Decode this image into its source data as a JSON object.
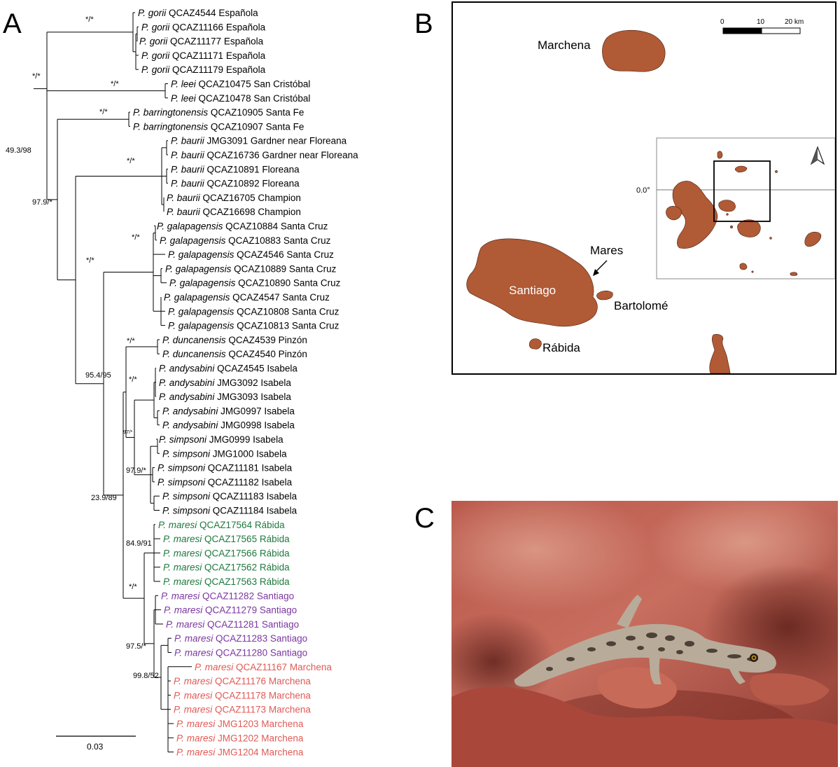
{
  "panels": {
    "a": "A",
    "b": "B",
    "c": "C"
  },
  "colors": {
    "island_fill": "#b05a36",
    "rabida_green": "#1e7a3e",
    "santiago_purple": "#7b36a0",
    "marchena_red": "#e05a55",
    "branch": "#000000"
  },
  "tree": {
    "scale_bar_label": "0.03",
    "tips": [
      {
        "genus": "P.",
        "species": "gorii",
        "voucher": "QCAZ4544",
        "locality": "Española"
      },
      {
        "genus": "P.",
        "species": "gorii",
        "voucher": "QCAZ11166",
        "locality": "Española"
      },
      {
        "genus": "P.",
        "species": "gorii",
        "voucher": "QCAZ11177",
        "locality": "Española"
      },
      {
        "genus": "P.",
        "species": "gorii",
        "voucher": "QCAZ11171",
        "locality": "Española"
      },
      {
        "genus": "P.",
        "species": "gorii",
        "voucher": "QCAZ11179",
        "locality": "Española"
      },
      {
        "genus": "P.",
        "species": "leei",
        "voucher": "QCAZ10475",
        "locality": "San Cristóbal"
      },
      {
        "genus": "P.",
        "species": "leei",
        "voucher": "QCAZ10478",
        "locality": "San Cristóbal"
      },
      {
        "genus": "P.",
        "species": "barringtonensis",
        "voucher": "QCAZ10905",
        "locality": "Santa Fe"
      },
      {
        "genus": "P.",
        "species": "barringtonensis",
        "voucher": "QCAZ10907",
        "locality": "Santa Fe"
      },
      {
        "genus": "P.",
        "species": "baurii",
        "voucher": "JMG3091",
        "locality": "Gardner near Floreana"
      },
      {
        "genus": "P.",
        "species": "baurii",
        "voucher": "QCAZ16736",
        "locality": "Gardner near Floreana"
      },
      {
        "genus": "P.",
        "species": "baurii",
        "voucher": "QCAZ10891",
        "locality": "Floreana"
      },
      {
        "genus": "P.",
        "species": "baurii",
        "voucher": "QCAZ10892",
        "locality": "Floreana"
      },
      {
        "genus": "P.",
        "species": "baurii",
        "voucher": "QCAZ16705",
        "locality": "Champion"
      },
      {
        "genus": "P.",
        "species": "baurii",
        "voucher": "QCAZ16698",
        "locality": "Champion"
      },
      {
        "genus": "P.",
        "species": "galapagensis",
        "voucher": "QCAZ10884",
        "locality": "Santa Cruz"
      },
      {
        "genus": "P.",
        "species": "galapagensis",
        "voucher": "QCAZ10883",
        "locality": "Santa Cruz"
      },
      {
        "genus": "P.",
        "species": "galapagensis",
        "voucher": "QCAZ4546",
        "locality": "Santa Cruz"
      },
      {
        "genus": "P.",
        "species": "galapagensis",
        "voucher": "QCAZ10889",
        "locality": "Santa Cruz"
      },
      {
        "genus": "P.",
        "species": "galapagensis",
        "voucher": "QCAZ10890",
        "locality": "Santa Cruz"
      },
      {
        "genus": "P.",
        "species": "galapagensis",
        "voucher": "QCAZ4547",
        "locality": "Santa Cruz"
      },
      {
        "genus": "P.",
        "species": "galapagensis",
        "voucher": "QCAZ10808",
        "locality": "Santa Cruz"
      },
      {
        "genus": "P.",
        "species": "galapagensis",
        "voucher": "QCAZ10813",
        "locality": "Santa Cruz"
      },
      {
        "genus": "P.",
        "species": "duncanensis",
        "voucher": "QCAZ4539",
        "locality": "Pinzón"
      },
      {
        "genus": "P.",
        "species": "duncanensis",
        "voucher": "QCAZ4540",
        "locality": "Pinzón"
      },
      {
        "genus": "P.",
        "species": "andysabini",
        "voucher": "QCAZ4545",
        "locality": "Isabela"
      },
      {
        "genus": "P.",
        "species": "andysabini",
        "voucher": "JMG3092",
        "locality": "Isabela"
      },
      {
        "genus": "P.",
        "species": "andysabini",
        "voucher": "JMG3093",
        "locality": "Isabela"
      },
      {
        "genus": "P.",
        "species": "andysabini",
        "voucher": "JMG0997",
        "locality": "Isabela"
      },
      {
        "genus": "P.",
        "species": "andysabini",
        "voucher": "JMG0998",
        "locality": "Isabela"
      },
      {
        "genus": "P.",
        "species": "simpsoni",
        "voucher": "JMG0999",
        "locality": "Isabela"
      },
      {
        "genus": "P.",
        "species": "simpsoni",
        "voucher": "JMG1000",
        "locality": "Isabela"
      },
      {
        "genus": "P.",
        "species": "simpsoni",
        "voucher": "QCAZ11181",
        "locality": "Isabela"
      },
      {
        "genus": "P.",
        "species": "simpsoni",
        "voucher": "QCAZ11182",
        "locality": "Isabela"
      },
      {
        "genus": "P.",
        "species": "simpsoni",
        "voucher": "QCAZ11183",
        "locality": "Isabela"
      },
      {
        "genus": "P.",
        "species": "simpsoni",
        "voucher": "QCAZ11184",
        "locality": "Isabela"
      },
      {
        "genus": "P.",
        "species": "maresi",
        "voucher": "QCAZ17564",
        "locality": "Rábida"
      },
      {
        "genus": "P.",
        "species": "maresi",
        "voucher": "QCAZ17565",
        "locality": "Rábida"
      },
      {
        "genus": "P.",
        "species": "maresi",
        "voucher": "QCAZ17566",
        "locality": "Rábida"
      },
      {
        "genus": "P.",
        "species": "maresi",
        "voucher": "QCAZ17562",
        "locality": "Rábida"
      },
      {
        "genus": "P.",
        "species": "maresi",
        "voucher": "QCAZ17563",
        "locality": "Rábida"
      },
      {
        "genus": "P.",
        "species": "maresi",
        "voucher": "QCAZ11282",
        "locality": "Santiago"
      },
      {
        "genus": "P.",
        "species": "maresi",
        "voucher": "QCAZ11279",
        "locality": "Santiago"
      },
      {
        "genus": "P.",
        "species": "maresi",
        "voucher": "QCAZ11281",
        "locality": "Santiago"
      },
      {
        "genus": "P.",
        "species": "maresi",
        "voucher": "QCAZ11283",
        "locality": "Santiago"
      },
      {
        "genus": "P.",
        "species": "maresi",
        "voucher": "QCAZ11280",
        "locality": "Santiago"
      },
      {
        "genus": "P.",
        "species": "maresi",
        "voucher": "QCAZ11167",
        "locality": "Marchena"
      },
      {
        "genus": "P.",
        "species": "maresi",
        "voucher": "QCAZ11176",
        "locality": "Marchena"
      },
      {
        "genus": "P.",
        "species": "maresi",
        "voucher": "QCAZ11178",
        "locality": "Marchena"
      },
      {
        "genus": "P.",
        "species": "maresi",
        "voucher": "QCAZ11173",
        "locality": "Marchena"
      },
      {
        "genus": "P.",
        "species": "maresi",
        "voucher": "JMG1203",
        "locality": "Marchena"
      },
      {
        "genus": "P.",
        "species": "maresi",
        "voucher": "JMG1202",
        "locality": "Marchena"
      },
      {
        "genus": "P.",
        "species": "maresi",
        "voucher": "JMG1204",
        "locality": "Marchena"
      }
    ],
    "supports": {
      "root": "*/*",
      "gorii": "*/*",
      "gorii_leei": "49.3/98",
      "leei": "*/*",
      "barringtonensis": "*/*",
      "barr_rest": "97.9/*",
      "baurii": "*/*",
      "baurii_rest": "*/*",
      "galapagensis": "*/*",
      "gal_rest": "95.4/95",
      "duncanensis": "*/*",
      "andysabini": "*/*",
      "andy_simp": "97/*",
      "simpsoni": "97.9/*",
      "northern": "23.9/89",
      "rabida": "84.9/91",
      "maresi": "*/*",
      "santiago_marchena": "97.5/*",
      "marchena": "99.8/52"
    }
  },
  "map": {
    "labels": {
      "marchena": "Marchena",
      "santiago": "Santiago",
      "mares": "Mares",
      "bartolome": "Bartolomé",
      "rabida": "Rábida"
    },
    "scale": {
      "ticks": [
        "0",
        "10",
        "20 km"
      ]
    },
    "inset": {
      "lat_label": "0.0°"
    }
  }
}
